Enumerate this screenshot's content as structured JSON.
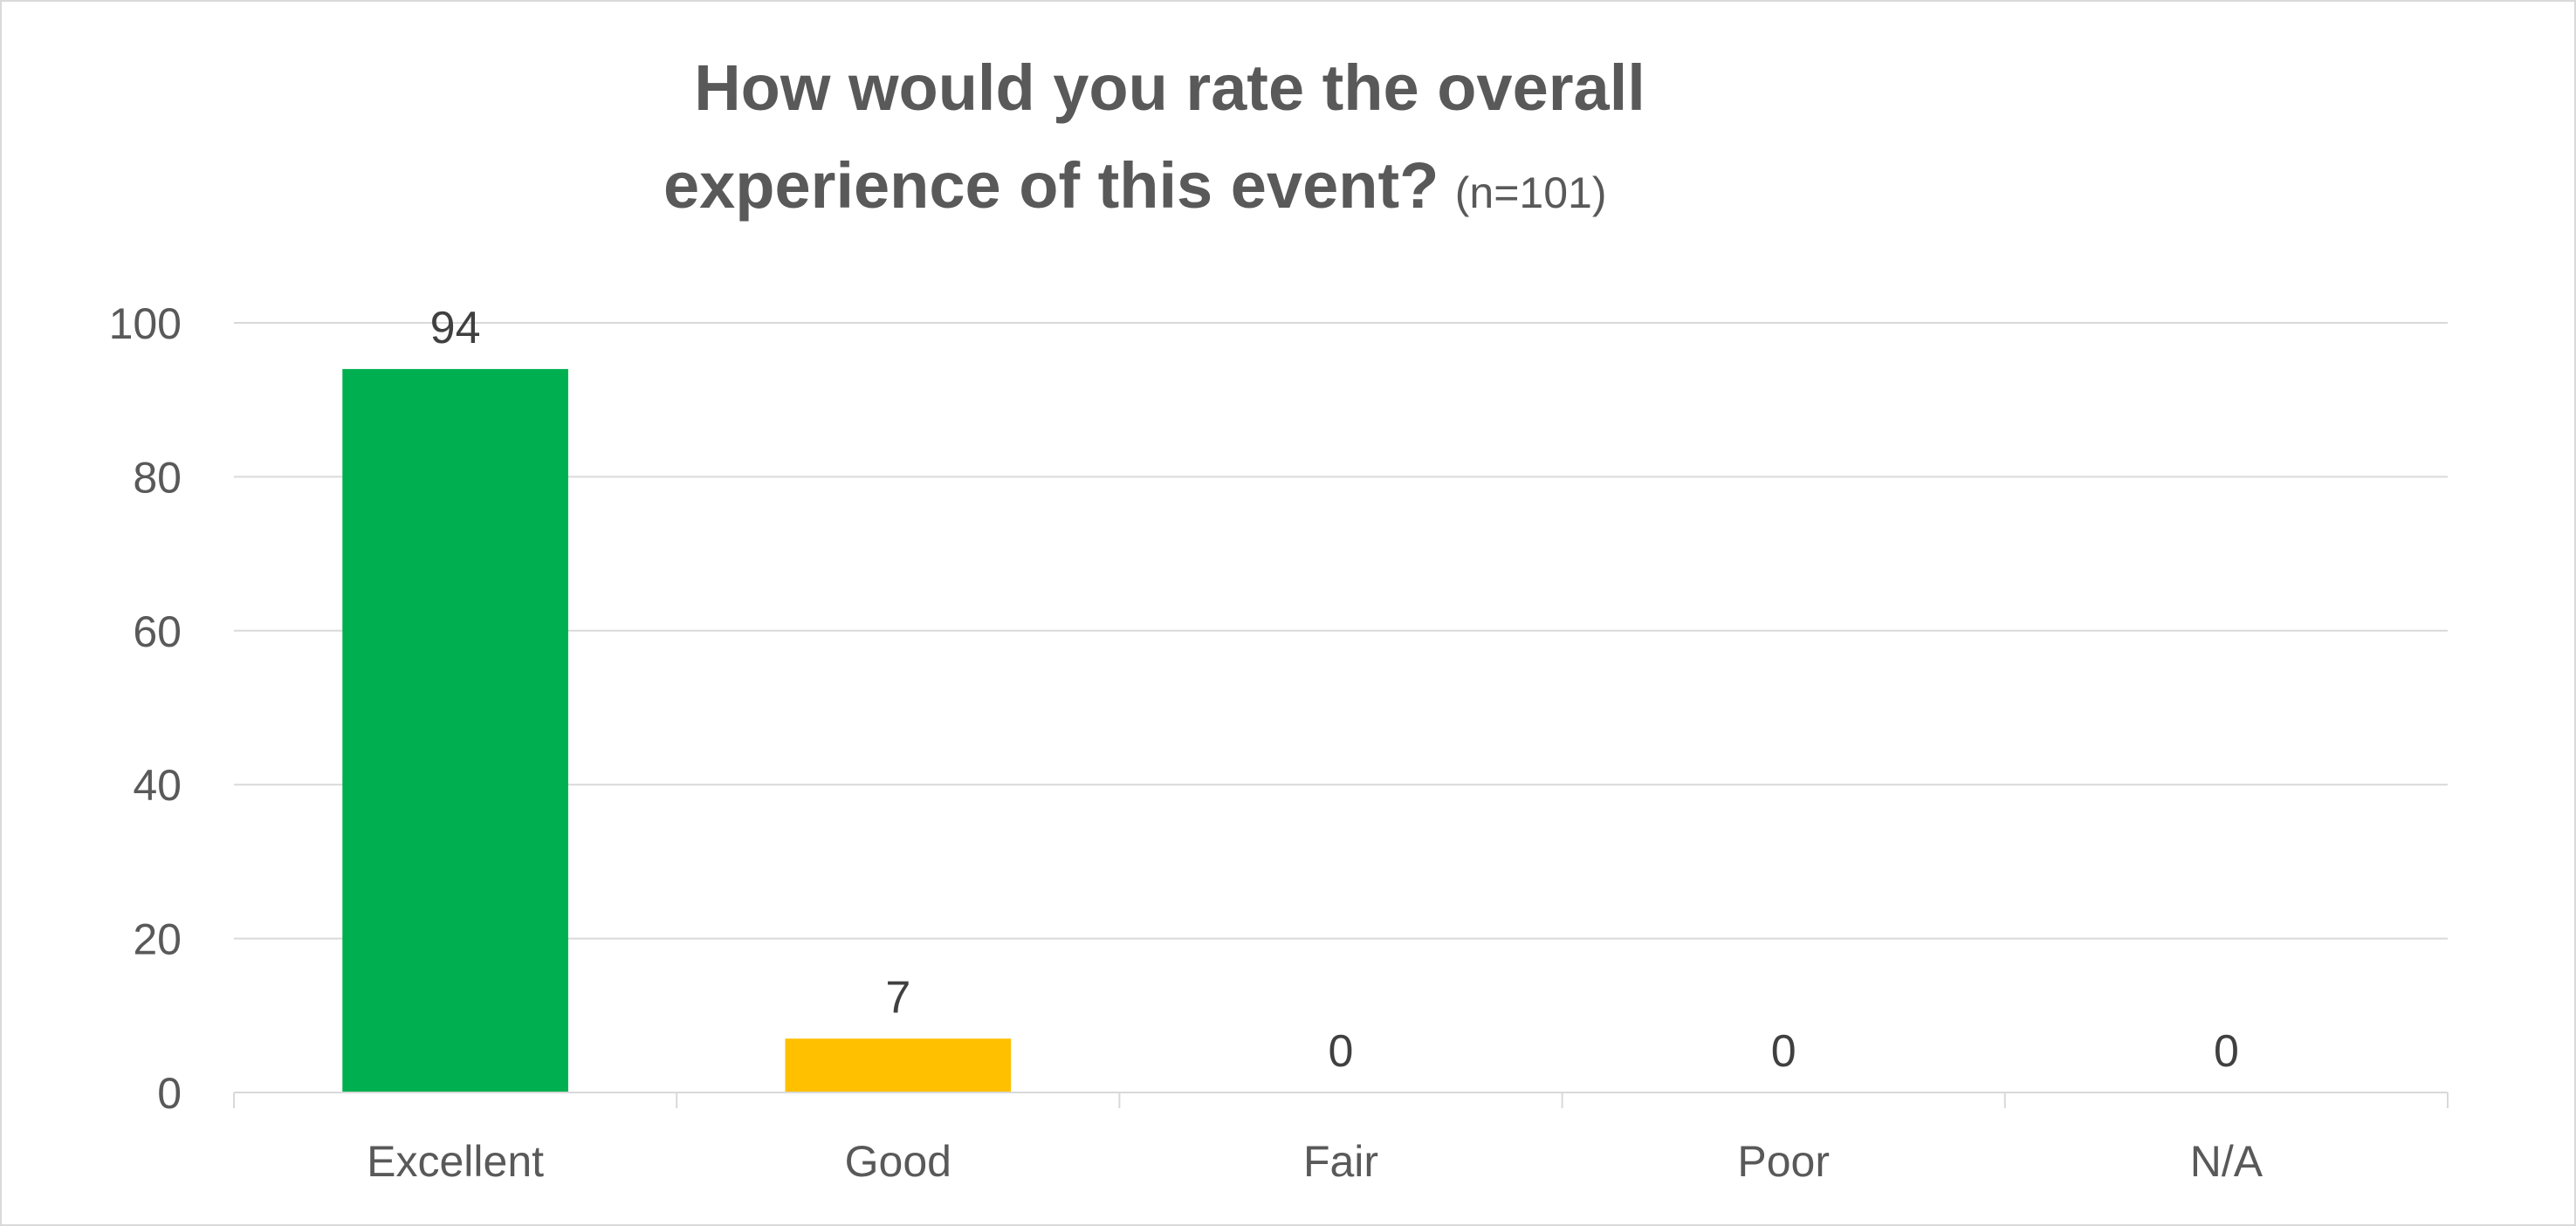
{
  "chart_data": {
    "type": "bar",
    "title_line1": "How would you rate the overall",
    "title_line2": "experience of this event?",
    "title_note": "(n=101)",
    "categories": [
      "Excellent",
      "Good",
      "Fair",
      "Poor",
      "N/A"
    ],
    "values": [
      94,
      7,
      0,
      0,
      0
    ],
    "data_labels": [
      "94",
      "7",
      "0",
      "0",
      "0"
    ],
    "bar_colors": [
      "#00b050",
      "#ffc000",
      "#00b050",
      "#00b050",
      "#00b050"
    ],
    "ylim": [
      0,
      100
    ],
    "yticks": [
      0,
      20,
      40,
      60,
      80,
      100
    ],
    "ytick_labels": [
      "0",
      "20",
      "40",
      "60",
      "80",
      "100"
    ],
    "xlabel": "",
    "ylabel": "",
    "grid": true,
    "legend": "none"
  }
}
